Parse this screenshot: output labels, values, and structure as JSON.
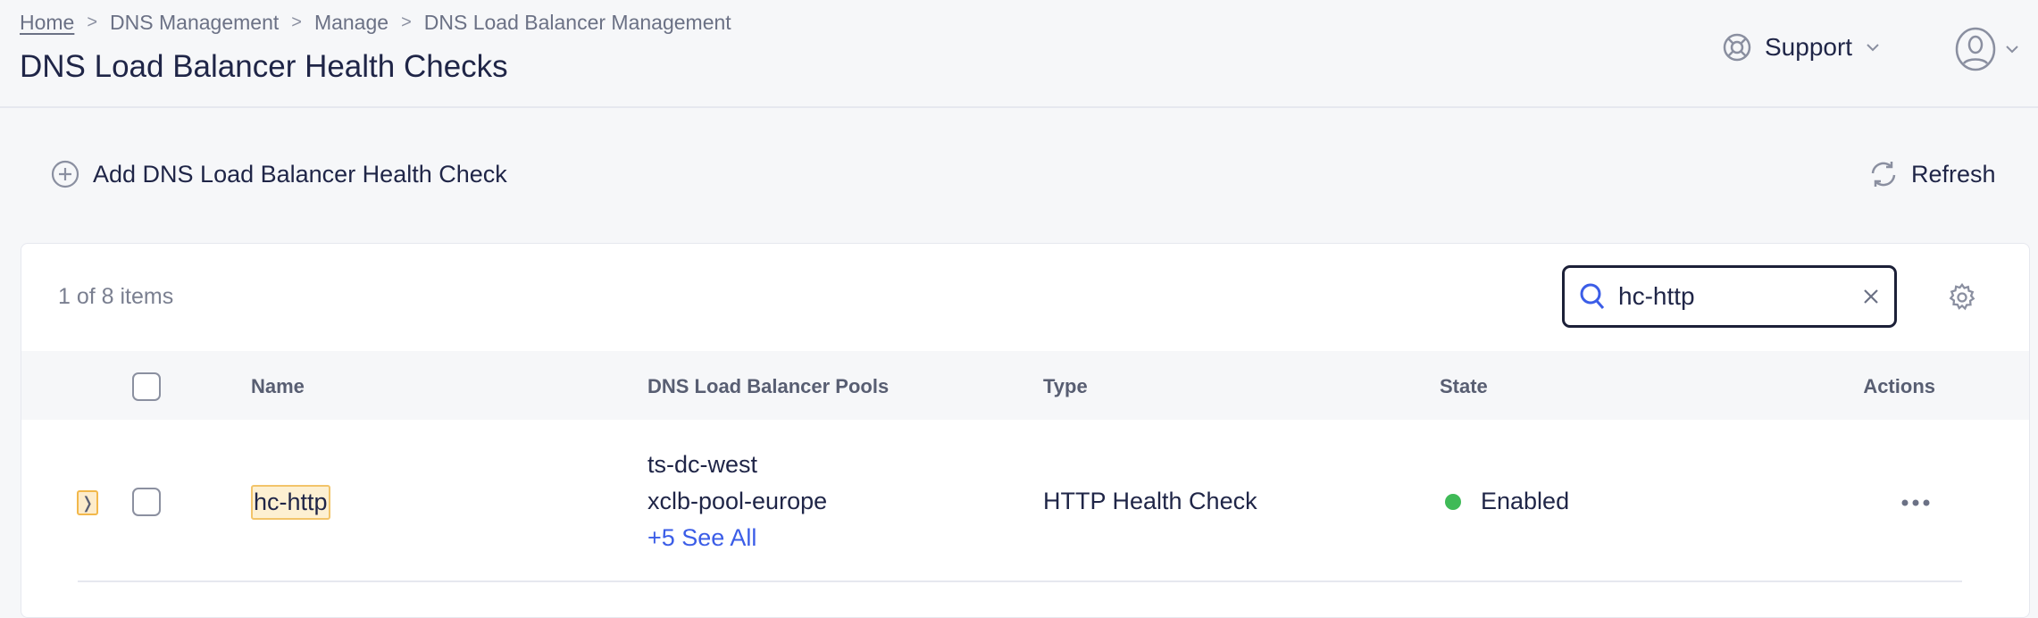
{
  "breadcrumb": [
    "Home",
    "DNS Management",
    "Manage",
    "DNS Load Balancer Management"
  ],
  "page_title": "DNS Load Balancer Health Checks",
  "header": {
    "support_label": "Support"
  },
  "toolbar": {
    "add_label": "Add DNS Load Balancer Health Check",
    "refresh_label": "Refresh"
  },
  "table": {
    "count_text": "1 of 8 items",
    "search_value": "hc-http",
    "columns": [
      "Name",
      "DNS Load Balancer Pools",
      "Type",
      "State",
      "Actions"
    ],
    "rows": [
      {
        "name": "hc-http",
        "pools": [
          "ts-dc-west",
          "xclb-pool-europe"
        ],
        "see_all": "+5 See All",
        "type": "HTTP Health Check",
        "state": "Enabled",
        "state_color": "#3fba57"
      }
    ]
  },
  "colors": {
    "accent": "#3b5de7",
    "highlight": "#fdf0d2",
    "enabled": "#3fba57"
  }
}
